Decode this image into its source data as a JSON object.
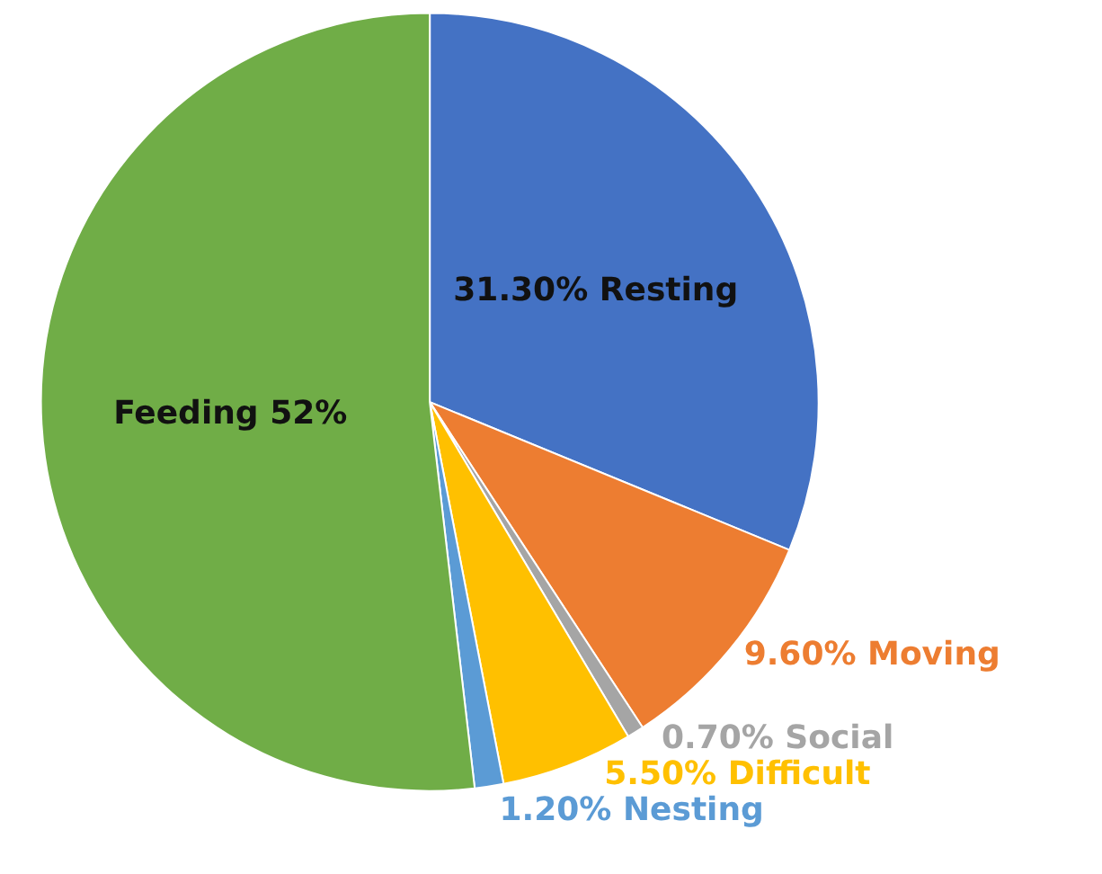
{
  "chart_data": {
    "type": "pie",
    "categories": [
      "Resting",
      "Moving",
      "Social",
      "Difficult",
      "Nesting",
      "Feeding"
    ],
    "values": [
      31.3,
      9.6,
      0.7,
      5.5,
      1.2,
      52
    ],
    "colors": [
      "#4472c4",
      "#ed7d31",
      "#a5a5a5",
      "#ffc000",
      "#5b9bd5",
      "#70ad47"
    ],
    "value_labels": [
      "31.30%",
      "9.60%",
      "0.70%",
      "5.50%",
      "1.20%",
      "52%"
    ],
    "legend": false
  }
}
